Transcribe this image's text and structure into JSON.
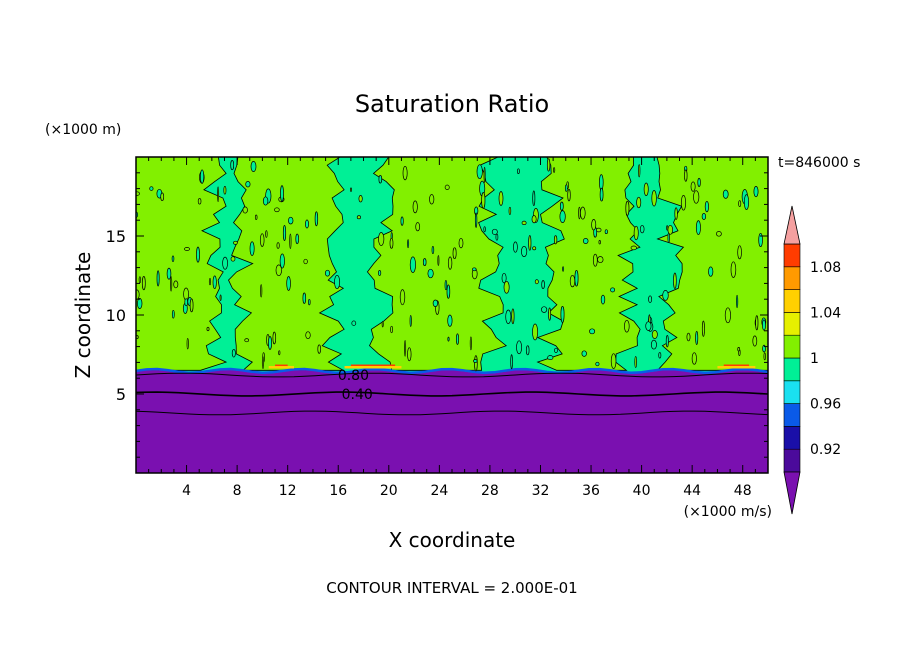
{
  "chart_data": {
    "type": "heatmap",
    "title": "Saturation Ratio",
    "xlabel": "X coordinate",
    "ylabel": "Z coordinate",
    "x_unit": "(×1000 m/s)",
    "y_unit": "(×1000 m)",
    "time_label": "t=846000 s",
    "footer": "CONTOUR INTERVAL = 2.000E-01",
    "xlim": [
      0,
      50
    ],
    "ylim": [
      0,
      20
    ],
    "x_ticks": [
      4,
      8,
      12,
      16,
      20,
      24,
      28,
      32,
      36,
      40,
      44,
      48
    ],
    "y_ticks": [
      5,
      10,
      15
    ],
    "contour_labels": [
      {
        "text": "0.80",
        "x": 17.2,
        "y": 6.2
      },
      {
        "text": "0.40",
        "x": 17.5,
        "y": 5.0
      }
    ],
    "colorbar": {
      "levels": [
        0.9,
        0.92,
        0.94,
        0.96,
        0.98,
        1.0,
        1.02,
        1.04,
        1.06,
        1.08,
        1.1
      ],
      "tick_labels": [
        "0.92",
        "0.96",
        "1",
        "1.04",
        "1.08"
      ],
      "tick_values": [
        0.92,
        0.96,
        1.0,
        1.04,
        1.08
      ],
      "colors": [
        "#4b0a9b",
        "#1a0fa8",
        "#0a5ae8",
        "#1ae0f0",
        "#00f096",
        "#82f000",
        "#e6f000",
        "#ffd000",
        "#ff9a00",
        "#ff3c00"
      ],
      "under_color": "#7a10b0",
      "over_color": "#f5a0a0"
    },
    "regions": {
      "dry_layer_top": 6.5,
      "dry_color": "#7a10b0",
      "moist_background": "#00f096",
      "supersat_color": "#82f000"
    }
  }
}
